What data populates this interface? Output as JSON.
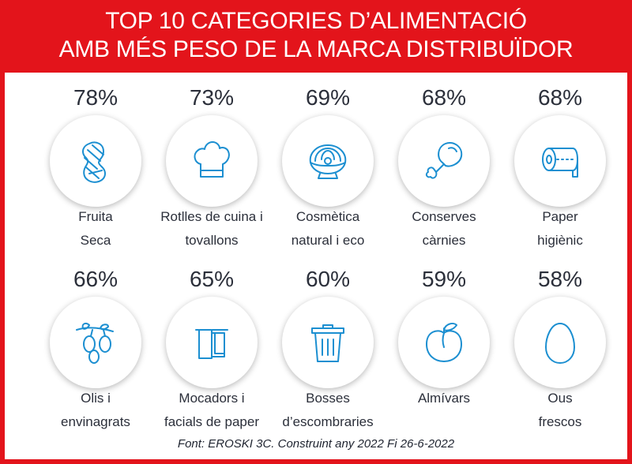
{
  "header": {
    "title_line1": "TOP 10 CATEGORIES D’ALIMENTACIÓ",
    "title_line2": "AMB MÉS PESO DE LA MARCA DISTRIBUÏDOR"
  },
  "chart_data": {
    "type": "table",
    "title": "TOP 10 CATEGORIES D’ALIMENTACIÓ AMB MÉS PESO DE LA MARCA DISTRIBUÏDOR",
    "categories": [
      "Fruita Seca",
      "Rotlles de cuina i tovallons",
      "Cosmètica natural i eco",
      "Conserves càrnies",
      "Paper higiènic",
      "Olis i envinagrats",
      "Mocadors i facials de paper",
      "Bosses d’escombraries",
      "Almívars",
      "Ous frescos"
    ],
    "values": [
      78,
      73,
      69,
      68,
      68,
      66,
      65,
      60,
      59,
      58
    ],
    "unit": "%"
  },
  "items": [
    {
      "pct": "78%",
      "label1": "Fruita",
      "label2": "Seca",
      "icon": "peanut-icon"
    },
    {
      "pct": "73%",
      "label1": "Rotlles de cuina i",
      "label2": "tovallons",
      "icon": "chef-hat-icon"
    },
    {
      "pct": "69%",
      "label1": "Cosmètica",
      "label2": "natural i eco",
      "icon": "oyster-pearl-icon"
    },
    {
      "pct": "68%",
      "label1": "Conserves",
      "label2": "càrnies",
      "icon": "drumstick-icon"
    },
    {
      "pct": "68%",
      "label1": "Paper",
      "label2": "higiènic",
      "icon": "toilet-paper-icon"
    },
    {
      "pct": "66%",
      "label1": "Olis i",
      "label2": "envinagrats",
      "icon": "olives-icon"
    },
    {
      "pct": "65%",
      "label1": "Mocadors i",
      "label2": "facials de paper",
      "icon": "towel-icon"
    },
    {
      "pct": "60%",
      "label1": "Bosses",
      "label2": "d’escombraries",
      "icon": "trash-bin-icon"
    },
    {
      "pct": "59%",
      "label1": "Almívars",
      "label2": "",
      "icon": "peach-icon"
    },
    {
      "pct": "58%",
      "label1": "Ous",
      "label2": "frescos",
      "icon": "egg-icon"
    }
  ],
  "source": "Font: EROSKI 3C. Construint any 2022 Fi 26-6-2022",
  "colors": {
    "accent": "#e3141b",
    "icon": "#1c8fd1",
    "text": "#2b2f3a"
  }
}
